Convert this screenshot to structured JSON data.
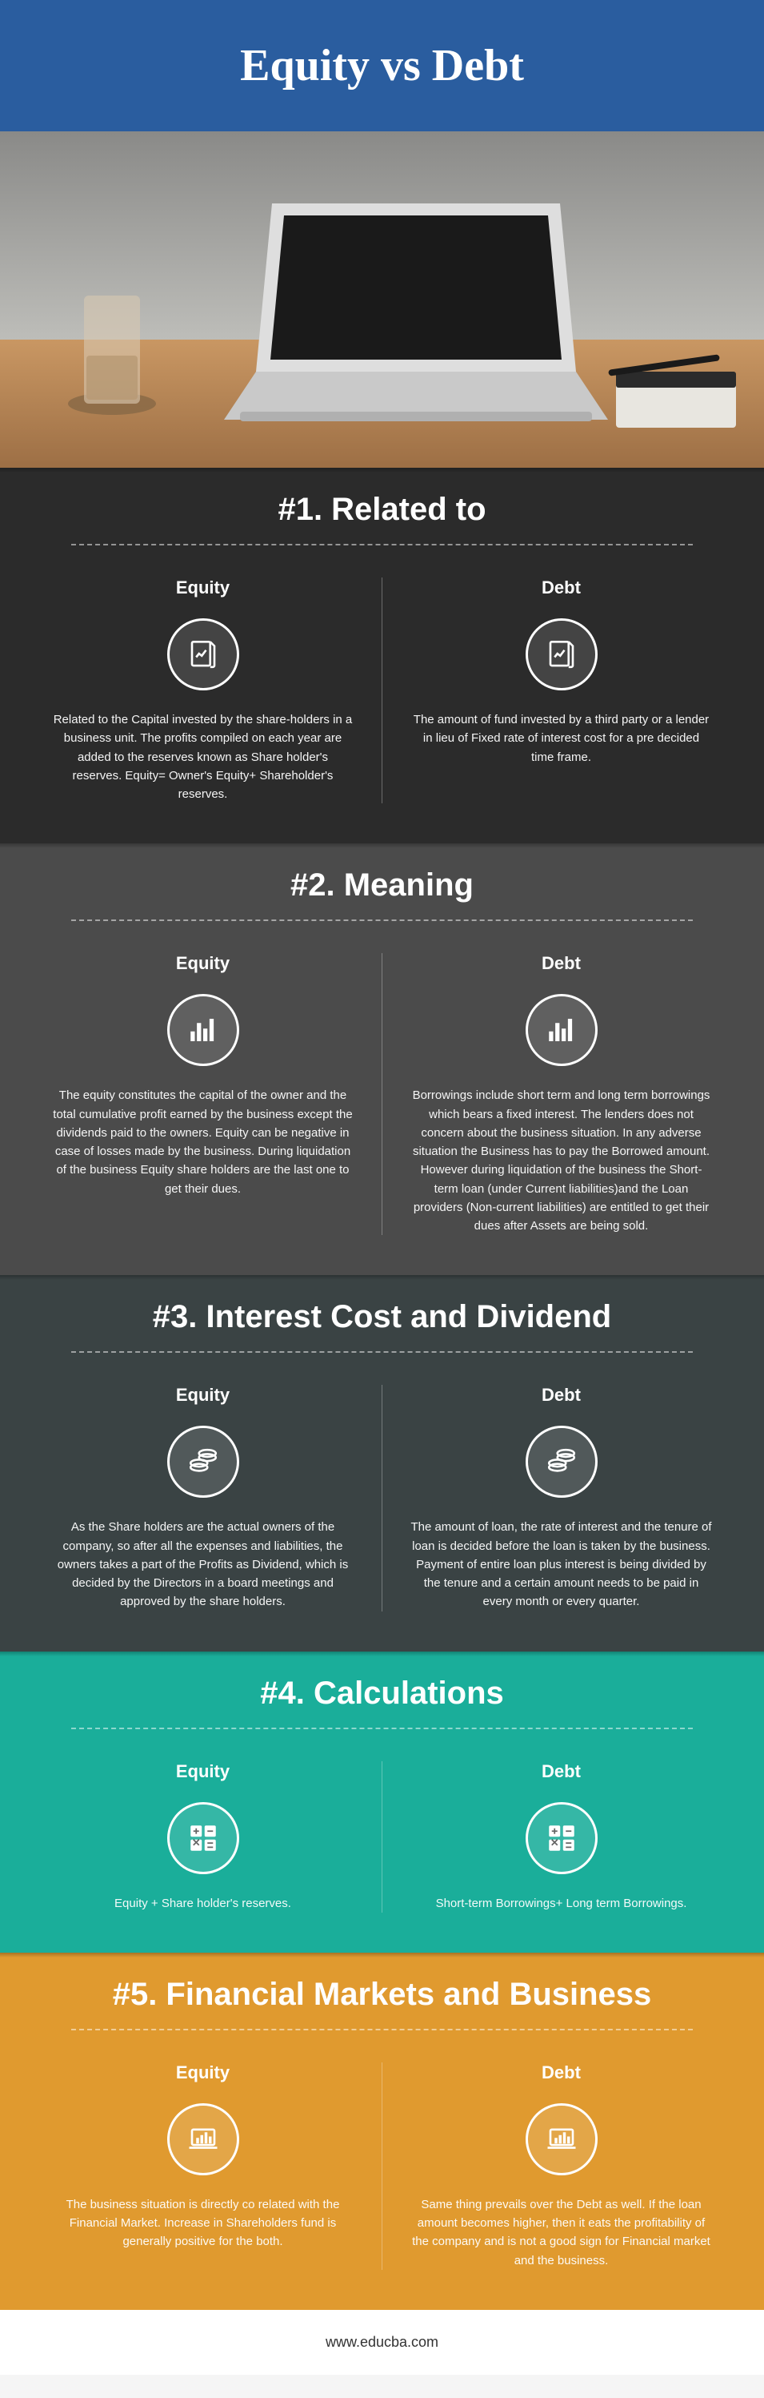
{
  "title": "Equity vs Debt",
  "footer": "www.educba.com",
  "colors": {
    "header_bg": "#2a5d9f",
    "s1_bg": "#2b2b2b",
    "s2_bg": "#4b4b4b",
    "s3_bg": "#3a4344",
    "s4_bg": "#1aae9a",
    "s5_bg": "#e09a2f",
    "footer_bg": "#ffffff",
    "text": "#ffffff",
    "footer_text": "#333333"
  },
  "hero": {
    "desk": "#b88a5a",
    "wall_top": "#8a8a88",
    "wall_bot": "#bdbdb9",
    "laptop_lid": "#dedede",
    "laptop_screen": "#1a1a1a",
    "glass": "#d8c9b2",
    "notebook": "#2b2b2b"
  },
  "sections": [
    {
      "heading": "#1. Related to",
      "bg": "#2b2b2b",
      "icon": "doc-chart",
      "equity_label": "Equity",
      "debt_label": "Debt",
      "equity_text": "Related to the Capital invested by the share-holders in a business unit. The profits compiled on each year are added to the reserves known as Share holder's reserves. Equity= Owner's Equity+ Shareholder's reserves.",
      "debt_text": "The amount of fund invested by a third party or a lender in lieu of Fixed rate of interest cost for a pre decided time frame."
    },
    {
      "heading": "#2. Meaning",
      "bg": "#4b4b4b",
      "icon": "bars",
      "equity_label": "Equity",
      "debt_label": "Debt",
      "equity_text": "The equity constitutes the capital of the owner and the total cumulative profit earned by the business except the dividends paid to the owners. Equity can be negative in case of losses made by the business. During liquidation of the business Equity share holders are the last one to get their dues.",
      "debt_text": "Borrowings include short term and long term borrowings which bears a fixed interest. The lenders does not concern about the business situation. In any adverse situation the Business has to pay the Borrowed amount. However during liquidation of the business the Short-term loan (under Current liabilities)and the Loan providers (Non-current liabilities) are entitled to get their dues after Assets are being sold."
    },
    {
      "heading": "#3. Interest Cost and Dividend",
      "bg": "#3a4344",
      "icon": "coins",
      "equity_label": "Equity",
      "debt_label": "Debt",
      "equity_text": "As the Share holders are the actual owners of the company, so after all the expenses and liabilities, the owners takes a part of the Profits as Dividend, which is decided by the Directors in a board meetings and approved by the share holders.",
      "debt_text": "The amount of loan, the rate of interest and the tenure of loan is decided before the loan is taken by the business. Payment of entire loan plus interest is being divided by the tenure and a certain amount needs to be paid in every month or every quarter."
    },
    {
      "heading": "#4. Calculations",
      "bg": "#1aae9a",
      "icon": "calc",
      "equity_label": "Equity",
      "debt_label": "Debt",
      "equity_text": "Equity + Share holder's reserves.",
      "debt_text": "Short-term Borrowings+ Long term Borrowings."
    },
    {
      "heading": "#5. Financial Markets and Business",
      "bg": "#e09a2f",
      "icon": "laptop-bars",
      "equity_label": "Equity",
      "debt_label": "Debt",
      "equity_text": "The business situation is directly co related with the Financial Market. Increase in Shareholders fund is generally positive for the both.",
      "debt_text": "Same thing prevails over the Debt as well. If the loan amount becomes higher, then it eats the profitability of the company and is not a good sign for Financial market and the business."
    }
  ]
}
